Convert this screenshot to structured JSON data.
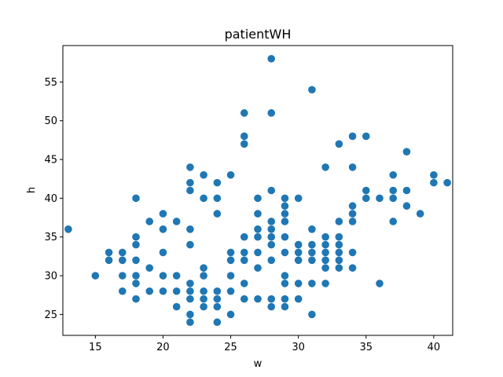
{
  "chart_data": {
    "type": "scatter",
    "title": "patientWH",
    "xlabel": "w",
    "ylabel": "h",
    "xlim": [
      12.6,
      41.4
    ],
    "ylim": [
      22.3,
      59.7
    ],
    "xticks": [
      15,
      20,
      25,
      30,
      35,
      40
    ],
    "yticks": [
      25,
      30,
      35,
      40,
      45,
      50,
      55
    ],
    "grid": false,
    "color": "#1f77b4",
    "series": [
      {
        "points": [
          [
            13,
            36
          ],
          [
            15,
            30
          ],
          [
            16,
            33
          ],
          [
            16,
            32
          ],
          [
            17,
            33
          ],
          [
            17,
            32
          ],
          [
            17,
            30
          ],
          [
            17,
            28
          ],
          [
            18,
            40
          ],
          [
            18,
            35
          ],
          [
            18,
            34
          ],
          [
            18,
            32
          ],
          [
            18,
            30
          ],
          [
            18,
            29
          ],
          [
            18,
            27
          ],
          [
            19,
            37
          ],
          [
            19,
            31
          ],
          [
            19,
            28
          ],
          [
            20,
            38
          ],
          [
            20,
            36
          ],
          [
            20,
            33
          ],
          [
            20,
            30
          ],
          [
            20,
            28
          ],
          [
            21,
            37
          ],
          [
            21,
            30
          ],
          [
            21,
            28
          ],
          [
            21,
            26
          ],
          [
            22,
            44
          ],
          [
            22,
            42
          ],
          [
            22,
            41
          ],
          [
            22,
            36
          ],
          [
            22,
            34
          ],
          [
            22,
            29
          ],
          [
            22,
            28
          ],
          [
            22,
            27
          ],
          [
            22,
            25
          ],
          [
            22,
            24
          ],
          [
            23,
            43
          ],
          [
            23,
            40
          ],
          [
            23,
            31
          ],
          [
            23,
            30
          ],
          [
            23,
            28
          ],
          [
            23,
            27
          ],
          [
            23,
            26
          ],
          [
            24,
            42
          ],
          [
            24,
            40
          ],
          [
            24,
            38
          ],
          [
            24,
            28
          ],
          [
            24,
            27
          ],
          [
            24,
            26
          ],
          [
            24,
            24
          ],
          [
            25,
            43
          ],
          [
            25,
            33
          ],
          [
            25,
            32
          ],
          [
            25,
            30
          ],
          [
            25,
            28
          ],
          [
            25,
            25
          ],
          [
            26,
            51
          ],
          [
            26,
            48
          ],
          [
            26,
            47
          ],
          [
            26,
            35
          ],
          [
            26,
            33
          ],
          [
            26,
            32
          ],
          [
            26,
            29
          ],
          [
            26,
            27
          ],
          [
            27,
            40
          ],
          [
            27,
            38
          ],
          [
            27,
            36
          ],
          [
            27,
            35
          ],
          [
            27,
            33
          ],
          [
            27,
            31
          ],
          [
            27,
            27
          ],
          [
            28,
            58
          ],
          [
            28,
            51
          ],
          [
            28,
            41
          ],
          [
            28,
            37
          ],
          [
            28,
            36
          ],
          [
            28,
            35
          ],
          [
            28,
            34
          ],
          [
            28,
            32
          ],
          [
            28,
            27
          ],
          [
            28,
            26
          ],
          [
            29,
            40
          ],
          [
            29,
            39
          ],
          [
            29,
            38
          ],
          [
            29,
            37
          ],
          [
            29,
            35
          ],
          [
            29,
            33
          ],
          [
            29,
            30
          ],
          [
            29,
            29
          ],
          [
            29,
            27
          ],
          [
            29,
            26
          ],
          [
            30,
            40
          ],
          [
            30,
            34
          ],
          [
            30,
            33
          ],
          [
            30,
            32
          ],
          [
            30,
            29
          ],
          [
            30,
            27
          ],
          [
            31,
            54
          ],
          [
            31,
            36
          ],
          [
            31,
            34
          ],
          [
            31,
            33
          ],
          [
            31,
            32
          ],
          [
            31,
            29
          ],
          [
            31,
            25
          ],
          [
            32,
            44
          ],
          [
            32,
            35
          ],
          [
            32,
            34
          ],
          [
            32,
            33
          ],
          [
            32,
            32
          ],
          [
            32,
            31
          ],
          [
            32,
            29
          ],
          [
            33,
            47
          ],
          [
            33,
            37
          ],
          [
            33,
            35
          ],
          [
            33,
            34
          ],
          [
            33,
            33
          ],
          [
            33,
            32
          ],
          [
            33,
            31
          ],
          [
            34,
            48
          ],
          [
            34,
            44
          ],
          [
            34,
            39
          ],
          [
            34,
            38
          ],
          [
            34,
            37
          ],
          [
            34,
            33
          ],
          [
            34,
            31
          ],
          [
            35,
            48
          ],
          [
            35,
            41
          ],
          [
            35,
            40
          ],
          [
            36,
            40
          ],
          [
            36,
            29
          ],
          [
            37,
            43
          ],
          [
            37,
            41
          ],
          [
            37,
            40
          ],
          [
            37,
            37
          ],
          [
            38,
            46
          ],
          [
            38,
            41
          ],
          [
            38,
            39
          ],
          [
            39,
            38
          ],
          [
            40,
            43
          ],
          [
            40,
            42
          ],
          [
            41,
            42
          ]
        ]
      }
    ]
  }
}
